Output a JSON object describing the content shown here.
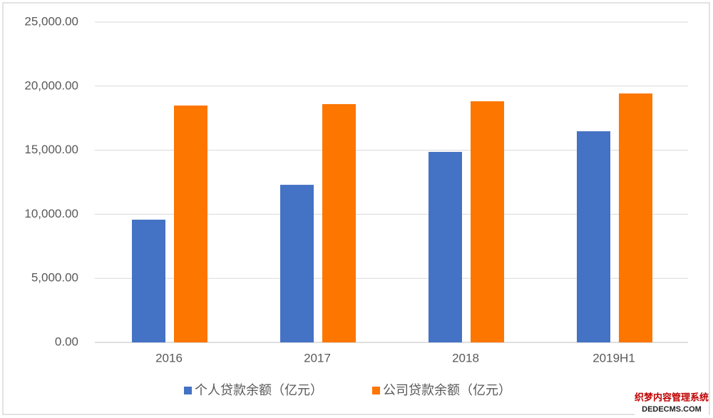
{
  "chart_data": {
    "type": "bar",
    "categories": [
      "2016",
      "2017",
      "2018",
      "2019H1"
    ],
    "series": [
      {
        "name": "个人贷款余额（亿元）",
        "color": "#4472c4",
        "values": [
          9580,
          12300,
          14870,
          16480
        ]
      },
      {
        "name": "公司贷款余额（亿元）",
        "color": "#fd7600",
        "values": [
          18490,
          18600,
          18820,
          19430
        ]
      }
    ],
    "ylim": [
      0,
      25000
    ],
    "yticks": [
      {
        "value": 0,
        "label": "0.00"
      },
      {
        "value": 5000,
        "label": "5,000.00"
      },
      {
        "value": 10000,
        "label": "10,000.00"
      },
      {
        "value": 15000,
        "label": "15,000.00"
      },
      {
        "value": 20000,
        "label": "20,000.00"
      },
      {
        "value": 25000,
        "label": "25,000.00"
      }
    ],
    "grid": true,
    "legend": "bottom"
  },
  "watermark": {
    "line1": "织梦内容管理系统",
    "line2": "DEDECMS.COM"
  }
}
